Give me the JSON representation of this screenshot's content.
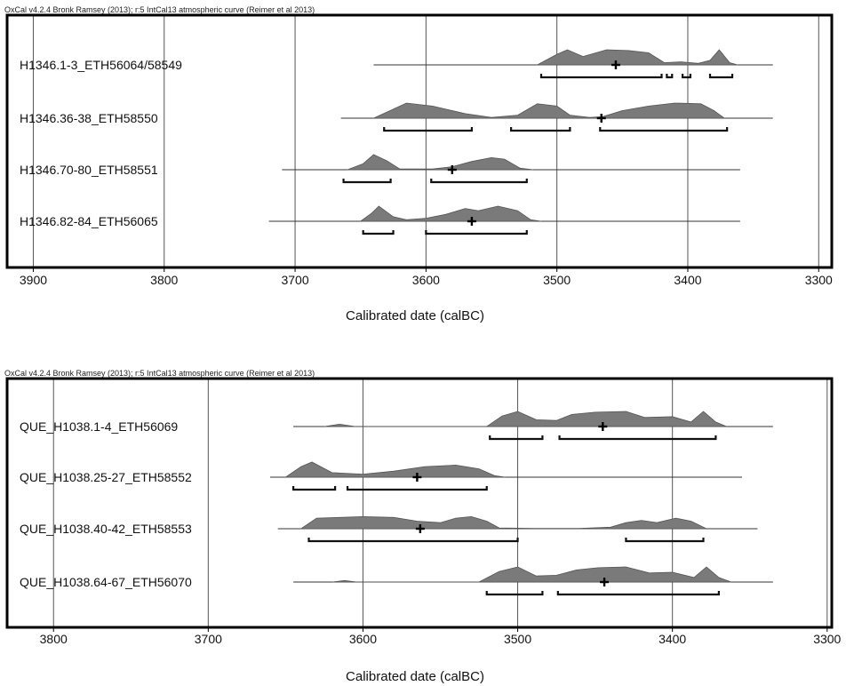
{
  "chart_data": [
    {
      "type": "area",
      "credit": "OxCal v4.2.4 Bronk Ramsey (2013); r:5 IntCal13 atmospheric curve (Reimer et al 2013)",
      "xlabel": "Calibrated date (calBC)",
      "xlim": [
        3920,
        3290
      ],
      "ticks": [
        3900,
        3800,
        3700,
        3600,
        3500,
        3400,
        3300
      ],
      "tick_labels": [
        "3900",
        "3800",
        "3700",
        "3600",
        "3500",
        "3400",
        "3300"
      ],
      "series": [
        {
          "name": "H1346.1-3_ETH56064/58549",
          "range": [
            3640,
            3335
          ],
          "mean": 3455,
          "density": [
            [
              3515,
              0
            ],
            [
              3500,
              0.7
            ],
            [
              3492,
              1.0
            ],
            [
              3480,
              0.55
            ],
            [
              3470,
              0.8
            ],
            [
              3462,
              1.0
            ],
            [
              3445,
              0.95
            ],
            [
              3430,
              0.8
            ],
            [
              3418,
              0.15
            ],
            [
              3405,
              0.2
            ],
            [
              3392,
              0.1
            ],
            [
              3383,
              0.3
            ],
            [
              3376,
              1.0
            ],
            [
              3368,
              0.15
            ],
            [
              3362,
              0
            ]
          ],
          "hpd": [
            [
              3512,
              3420
            ],
            [
              3416,
              3412
            ],
            [
              3404,
              3398
            ],
            [
              3383,
              3366
            ]
          ]
        },
        {
          "name": "H1346.36-38_ETH58550",
          "range": [
            3665,
            3335
          ],
          "mean": 3466,
          "density": [
            [
              3640,
              0
            ],
            [
              3630,
              0.4
            ],
            [
              3615,
              1.0
            ],
            [
              3595,
              0.8
            ],
            [
              3570,
              0.3
            ],
            [
              3550,
              0.05
            ],
            [
              3530,
              0.2
            ],
            [
              3515,
              0.95
            ],
            [
              3500,
              0.8
            ],
            [
              3490,
              0.2
            ],
            [
              3475,
              0.05
            ],
            [
              3465,
              0.1
            ],
            [
              3450,
              0.5
            ],
            [
              3430,
              0.8
            ],
            [
              3410,
              1.0
            ],
            [
              3390,
              0.95
            ],
            [
              3380,
              0.5
            ],
            [
              3372,
              0
            ]
          ],
          "hpd": [
            [
              3632,
              3565
            ],
            [
              3535,
              3490
            ],
            [
              3467,
              3370
            ]
          ]
        },
        {
          "name": "H1346.70-80_ETH58551",
          "range": [
            3710,
            3360
          ],
          "mean": 3580,
          "density": [
            [
              3660,
              0
            ],
            [
              3648,
              0.4
            ],
            [
              3640,
              1.0
            ],
            [
              3630,
              0.6
            ],
            [
              3620,
              0.05
            ],
            [
              3595,
              0.05
            ],
            [
              3580,
              0.2
            ],
            [
              3565,
              0.55
            ],
            [
              3550,
              0.8
            ],
            [
              3540,
              0.7
            ],
            [
              3528,
              0.1
            ],
            [
              3518,
              0
            ]
          ],
          "hpd": [
            [
              3663,
              3627
            ],
            [
              3596,
              3523
            ]
          ]
        },
        {
          "name": "H1346.82-84_ETH56065",
          "range": [
            3720,
            3360
          ],
          "mean": 3565,
          "density": [
            [
              3650,
              0
            ],
            [
              3642,
              0.5
            ],
            [
              3636,
              1.0
            ],
            [
              3625,
              0.3
            ],
            [
              3615,
              0.1
            ],
            [
              3600,
              0.2
            ],
            [
              3585,
              0.45
            ],
            [
              3570,
              0.85
            ],
            [
              3560,
              0.7
            ],
            [
              3545,
              1.0
            ],
            [
              3530,
              0.7
            ],
            [
              3520,
              0.1
            ],
            [
              3512,
              0
            ]
          ],
          "hpd": [
            [
              3648,
              3625
            ],
            [
              3600,
              3523
            ]
          ]
        }
      ]
    },
    {
      "type": "area",
      "credit": "OxCal v4.2.4 Bronk Ramsey (2013); r:5 IntCal13 atmospheric curve (Reimer et al 2013)",
      "xlabel": "Calibrated date (calBC)",
      "xlim": [
        3830,
        3297
      ],
      "ticks": [
        3800,
        3700,
        3600,
        3500,
        3400,
        3300
      ],
      "tick_labels": [
        "3800",
        "3700",
        "3600",
        "3500",
        "3400",
        "3300"
      ],
      "series": [
        {
          "name": "QUE_H1038.1-4_ETH56069",
          "range": [
            3645,
            3335
          ],
          "mean": 3445,
          "density": [
            [
              3625,
              0
            ],
            [
              3615,
              0.15
            ],
            [
              3605,
              0
            ],
            [
              3520,
              0
            ],
            [
              3510,
              0.7
            ],
            [
              3500,
              1.0
            ],
            [
              3488,
              0.45
            ],
            [
              3475,
              0.4
            ],
            [
              3465,
              0.8
            ],
            [
              3450,
              0.95
            ],
            [
              3430,
              1.0
            ],
            [
              3418,
              0.6
            ],
            [
              3400,
              0.65
            ],
            [
              3388,
              0.3
            ],
            [
              3380,
              1.0
            ],
            [
              3372,
              0.3
            ],
            [
              3365,
              0
            ]
          ],
          "hpd": [
            [
              3518,
              3484
            ],
            [
              3473,
              3372
            ]
          ]
        },
        {
          "name": "QUE_H1038.25-27_ETH58552",
          "range": [
            3660,
            3355
          ],
          "mean": 3565,
          "density": [
            [
              3650,
              0
            ],
            [
              3640,
              0.7
            ],
            [
              3633,
              1.0
            ],
            [
              3620,
              0.3
            ],
            [
              3600,
              0.2
            ],
            [
              3580,
              0.4
            ],
            [
              3560,
              0.7
            ],
            [
              3540,
              0.8
            ],
            [
              3525,
              0.55
            ],
            [
              3515,
              0.1
            ],
            [
              3508,
              0
            ]
          ],
          "hpd": [
            [
              3645,
              3618
            ],
            [
              3610,
              3520
            ]
          ]
        },
        {
          "name": "QUE_H1038.40-42_ETH58553",
          "range": [
            3655,
            3345
          ],
          "mean": 3563,
          "density": [
            [
              3640,
              0
            ],
            [
              3630,
              0.7
            ],
            [
              3615,
              0.75
            ],
            [
              3600,
              0.8
            ],
            [
              3580,
              0.75
            ],
            [
              3565,
              0.5
            ],
            [
              3550,
              0.4
            ],
            [
              3540,
              0.7
            ],
            [
              3530,
              0.8
            ],
            [
              3520,
              0.5
            ],
            [
              3512,
              0.05
            ],
            [
              3490,
              0.02
            ],
            [
              3460,
              0.02
            ],
            [
              3440,
              0.1
            ],
            [
              3430,
              0.4
            ],
            [
              3420,
              0.55
            ],
            [
              3410,
              0.4
            ],
            [
              3398,
              0.7
            ],
            [
              3388,
              0.5
            ],
            [
              3378,
              0
            ]
          ],
          "hpd": [
            [
              3635,
              3500
            ],
            [
              3430,
              3380
            ]
          ]
        },
        {
          "name": "QUE_H1038.64-67_ETH56070",
          "range": [
            3645,
            3335
          ],
          "mean": 3444,
          "density": [
            [
              3620,
              0
            ],
            [
              3612,
              0.1
            ],
            [
              3604,
              0
            ],
            [
              3525,
              0
            ],
            [
              3512,
              0.7
            ],
            [
              3500,
              1.0
            ],
            [
              3488,
              0.4
            ],
            [
              3475,
              0.45
            ],
            [
              3462,
              0.8
            ],
            [
              3448,
              0.95
            ],
            [
              3430,
              1.0
            ],
            [
              3415,
              0.6
            ],
            [
              3400,
              0.65
            ],
            [
              3386,
              0.3
            ],
            [
              3378,
              1.0
            ],
            [
              3370,
              0.3
            ],
            [
              3362,
              0
            ]
          ],
          "hpd": [
            [
              3520,
              3484
            ],
            [
              3474,
              3370
            ]
          ]
        }
      ]
    }
  ]
}
